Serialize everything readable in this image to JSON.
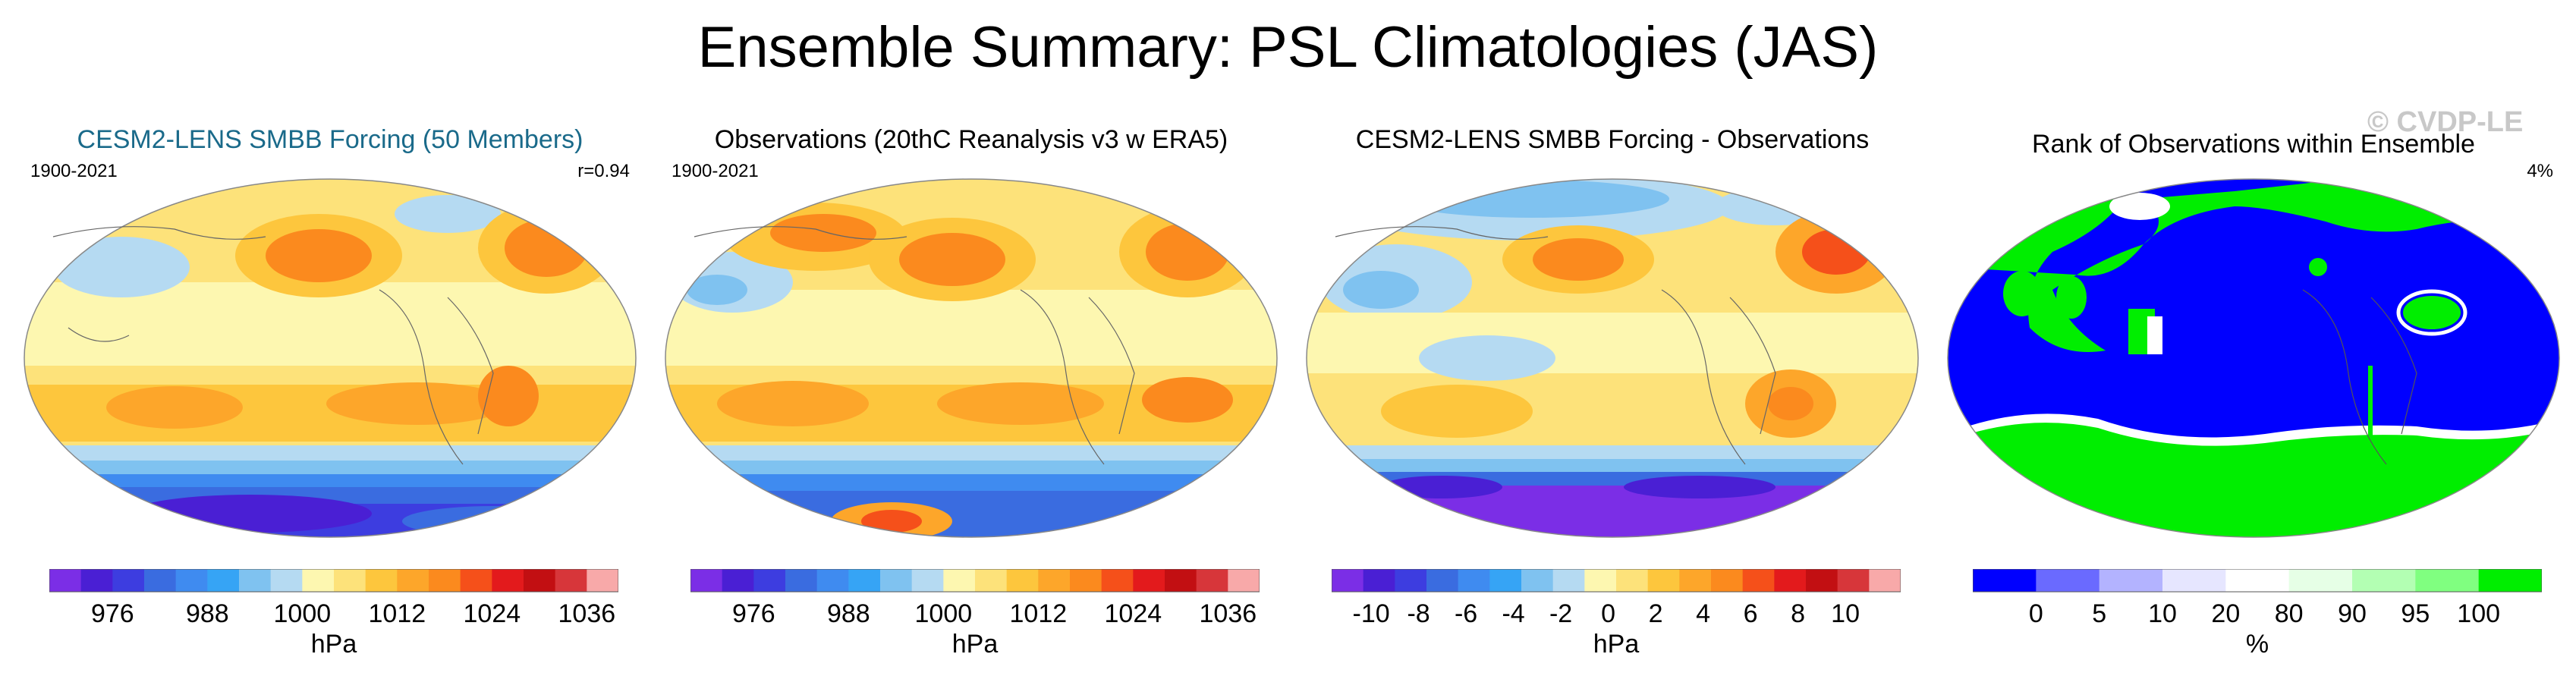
{
  "title": "Ensemble Summary: PSL Climatologies (JAS)",
  "watermark": "© CVDP-LE",
  "panels": [
    {
      "title": "CESM2-LENS SMBB Forcing (50 Members)",
      "left_label": "1900-2021",
      "right_label": "r=0.94",
      "colorbar": {
        "colors": [
          "#7b2ee6",
          "#4a1fd4",
          "#3d3de0",
          "#3a6ce0",
          "#3f8bf0",
          "#36a4f5",
          "#7fc2f0",
          "#b5daf2",
          "#fdf7b0",
          "#fde27a",
          "#fdc63d",
          "#fda62a",
          "#fb8a1e",
          "#f5501a",
          "#e31a1c",
          "#c20f12",
          "#d7363a",
          "#f8a9a9"
        ],
        "ticks": [
          "976",
          "988",
          "1000",
          "1012",
          "1024",
          "1036"
        ],
        "label": "hPa"
      }
    },
    {
      "title": "Observations (20thC Reanalysis v3 w ERA5)",
      "left_label": "1900-2021",
      "right_label": "",
      "colorbar": {
        "colors": [
          "#7b2ee6",
          "#4a1fd4",
          "#3d3de0",
          "#3a6ce0",
          "#3f8bf0",
          "#36a4f5",
          "#7fc2f0",
          "#b5daf2",
          "#fdf7b0",
          "#fde27a",
          "#fdc63d",
          "#fda62a",
          "#fb8a1e",
          "#f5501a",
          "#e31a1c",
          "#c20f12",
          "#d7363a",
          "#f8a9a9"
        ],
        "ticks": [
          "976",
          "988",
          "1000",
          "1012",
          "1024",
          "1036"
        ],
        "label": "hPa"
      }
    },
    {
      "title": "CESM2-LENS SMBB Forcing - Observations",
      "left_label": "",
      "right_label": "",
      "colorbar": {
        "colors": [
          "#7b2ee6",
          "#4a1fd4",
          "#3d3de0",
          "#3a6ce0",
          "#3f8bf0",
          "#36a4f5",
          "#7fc2f0",
          "#b5daf2",
          "#fdf7b0",
          "#fde27a",
          "#fdc63d",
          "#fda62a",
          "#fb8a1e",
          "#f5501a",
          "#e31a1c",
          "#c20f12",
          "#d7363a",
          "#f8a9a9"
        ],
        "ticks": [
          "-10",
          "-8",
          "-6",
          "-4",
          "-2",
          "0",
          "2",
          "4",
          "6",
          "8",
          "10"
        ],
        "label": "hPa"
      }
    },
    {
      "title": "Rank of Observations within Ensemble",
      "left_label": "",
      "right_label": "4%",
      "colorbar": {
        "colors": [
          "#0000ff",
          "#6a6aff",
          "#b3b3ff",
          "#e6e6ff",
          "#ffffff",
          "#e6ffe6",
          "#b3ffb3",
          "#80ff80",
          "#00ee00"
        ],
        "ticks": [
          "0",
          "5",
          "10",
          "20",
          "80",
          "90",
          "95",
          "100"
        ],
        "label": "%"
      }
    }
  ]
}
